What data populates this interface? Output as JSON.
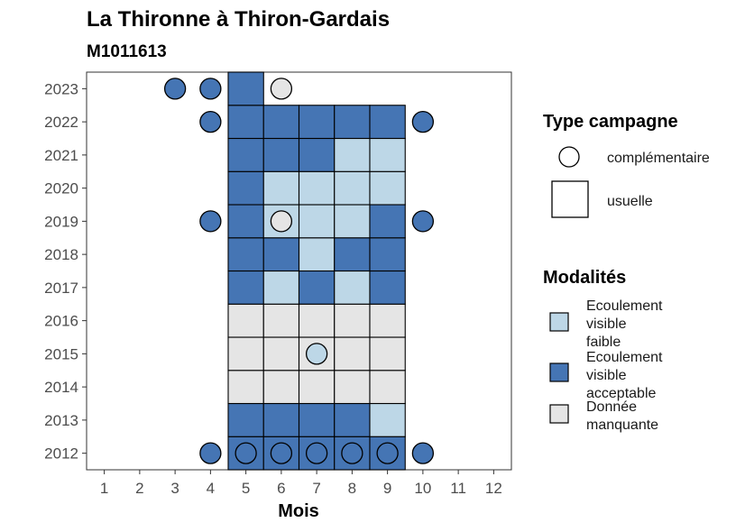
{
  "chart_data": {
    "type": "heatmap",
    "title": "La Thironne à Thiron-Gardais",
    "subtitle": "M1011613",
    "xlabel": "Mois",
    "ylabel": "",
    "x_ticks": [
      "1",
      "2",
      "3",
      "4",
      "5",
      "6",
      "7",
      "8",
      "9",
      "10",
      "11",
      "12"
    ],
    "y_ticks": [
      "2012",
      "2013",
      "2014",
      "2015",
      "2016",
      "2017",
      "2018",
      "2019",
      "2020",
      "2021",
      "2022",
      "2023"
    ],
    "xlim": [
      0.5,
      12.5
    ],
    "ylim": [
      2011.5,
      2023.5
    ],
    "grid": false,
    "colors": {
      "faible": "#bdd7e7",
      "acceptable": "#4575b4",
      "manquante": "#e5e5e5"
    },
    "legend_type": {
      "title": "Type campagne",
      "items": [
        {
          "shape": "circle",
          "label": "complémentaire"
        },
        {
          "shape": "square",
          "label": "usuelle"
        }
      ]
    },
    "legend_modalites": {
      "title": "Modalités",
      "items": [
        {
          "key": "faible",
          "lines": [
            "Ecoulement",
            "visible",
            "faible"
          ]
        },
        {
          "key": "acceptable",
          "lines": [
            "Ecoulement",
            "visible",
            "acceptable"
          ]
        },
        {
          "key": "manquante",
          "lines": [
            "Donnée",
            "manquante"
          ]
        }
      ]
    },
    "usuelle": [
      {
        "year": 2012,
        "cells": [
          "acceptable",
          "acceptable",
          "acceptable",
          "acceptable",
          "acceptable"
        ]
      },
      {
        "year": 2013,
        "cells": [
          "acceptable",
          "acceptable",
          "acceptable",
          "acceptable",
          "faible"
        ]
      },
      {
        "year": 2014,
        "cells": [
          "manquante",
          "manquante",
          "manquante",
          "manquante",
          "manquante"
        ]
      },
      {
        "year": 2015,
        "cells": [
          "manquante",
          "manquante",
          "manquante",
          "manquante",
          "manquante"
        ]
      },
      {
        "year": 2016,
        "cells": [
          "manquante",
          "manquante",
          "manquante",
          "manquante",
          "manquante"
        ]
      },
      {
        "year": 2017,
        "cells": [
          "acceptable",
          "faible",
          "acceptable",
          "faible",
          "acceptable"
        ]
      },
      {
        "year": 2018,
        "cells": [
          "acceptable",
          "acceptable",
          "faible",
          "acceptable",
          "acceptable"
        ]
      },
      {
        "year": 2019,
        "cells": [
          "acceptable",
          "faible",
          "faible",
          "faible",
          "acceptable"
        ]
      },
      {
        "year": 2020,
        "cells": [
          "acceptable",
          "faible",
          "faible",
          "faible",
          "faible"
        ]
      },
      {
        "year": 2021,
        "cells": [
          "acceptable",
          "acceptable",
          "acceptable",
          "faible",
          "faible"
        ]
      },
      {
        "year": 2022,
        "cells": [
          "acceptable",
          "acceptable",
          "acceptable",
          "acceptable",
          "acceptable"
        ]
      },
      {
        "year": 2023,
        "cells": [
          "acceptable"
        ]
      }
    ],
    "usuelle_start_month": 5,
    "complementaire": [
      {
        "year": 2023,
        "month": 3,
        "value": "acceptable"
      },
      {
        "year": 2023,
        "month": 4,
        "value": "acceptable"
      },
      {
        "year": 2023,
        "month": 6,
        "value": "manquante"
      },
      {
        "year": 2022,
        "month": 4,
        "value": "acceptable"
      },
      {
        "year": 2022,
        "month": 10,
        "value": "acceptable"
      },
      {
        "year": 2019,
        "month": 4,
        "value": "acceptable"
      },
      {
        "year": 2019,
        "month": 6,
        "value": "manquante"
      },
      {
        "year": 2019,
        "month": 10,
        "value": "acceptable"
      },
      {
        "year": 2015,
        "month": 7,
        "value": "faible"
      },
      {
        "year": 2012,
        "month": 4,
        "value": "acceptable"
      },
      {
        "year": 2012,
        "month": 5,
        "value": "acceptable"
      },
      {
        "year": 2012,
        "month": 6,
        "value": "acceptable"
      },
      {
        "year": 2012,
        "month": 7,
        "value": "acceptable"
      },
      {
        "year": 2012,
        "month": 8,
        "value": "acceptable"
      },
      {
        "year": 2012,
        "month": 9,
        "value": "acceptable"
      },
      {
        "year": 2012,
        "month": 10,
        "value": "acceptable"
      }
    ]
  }
}
